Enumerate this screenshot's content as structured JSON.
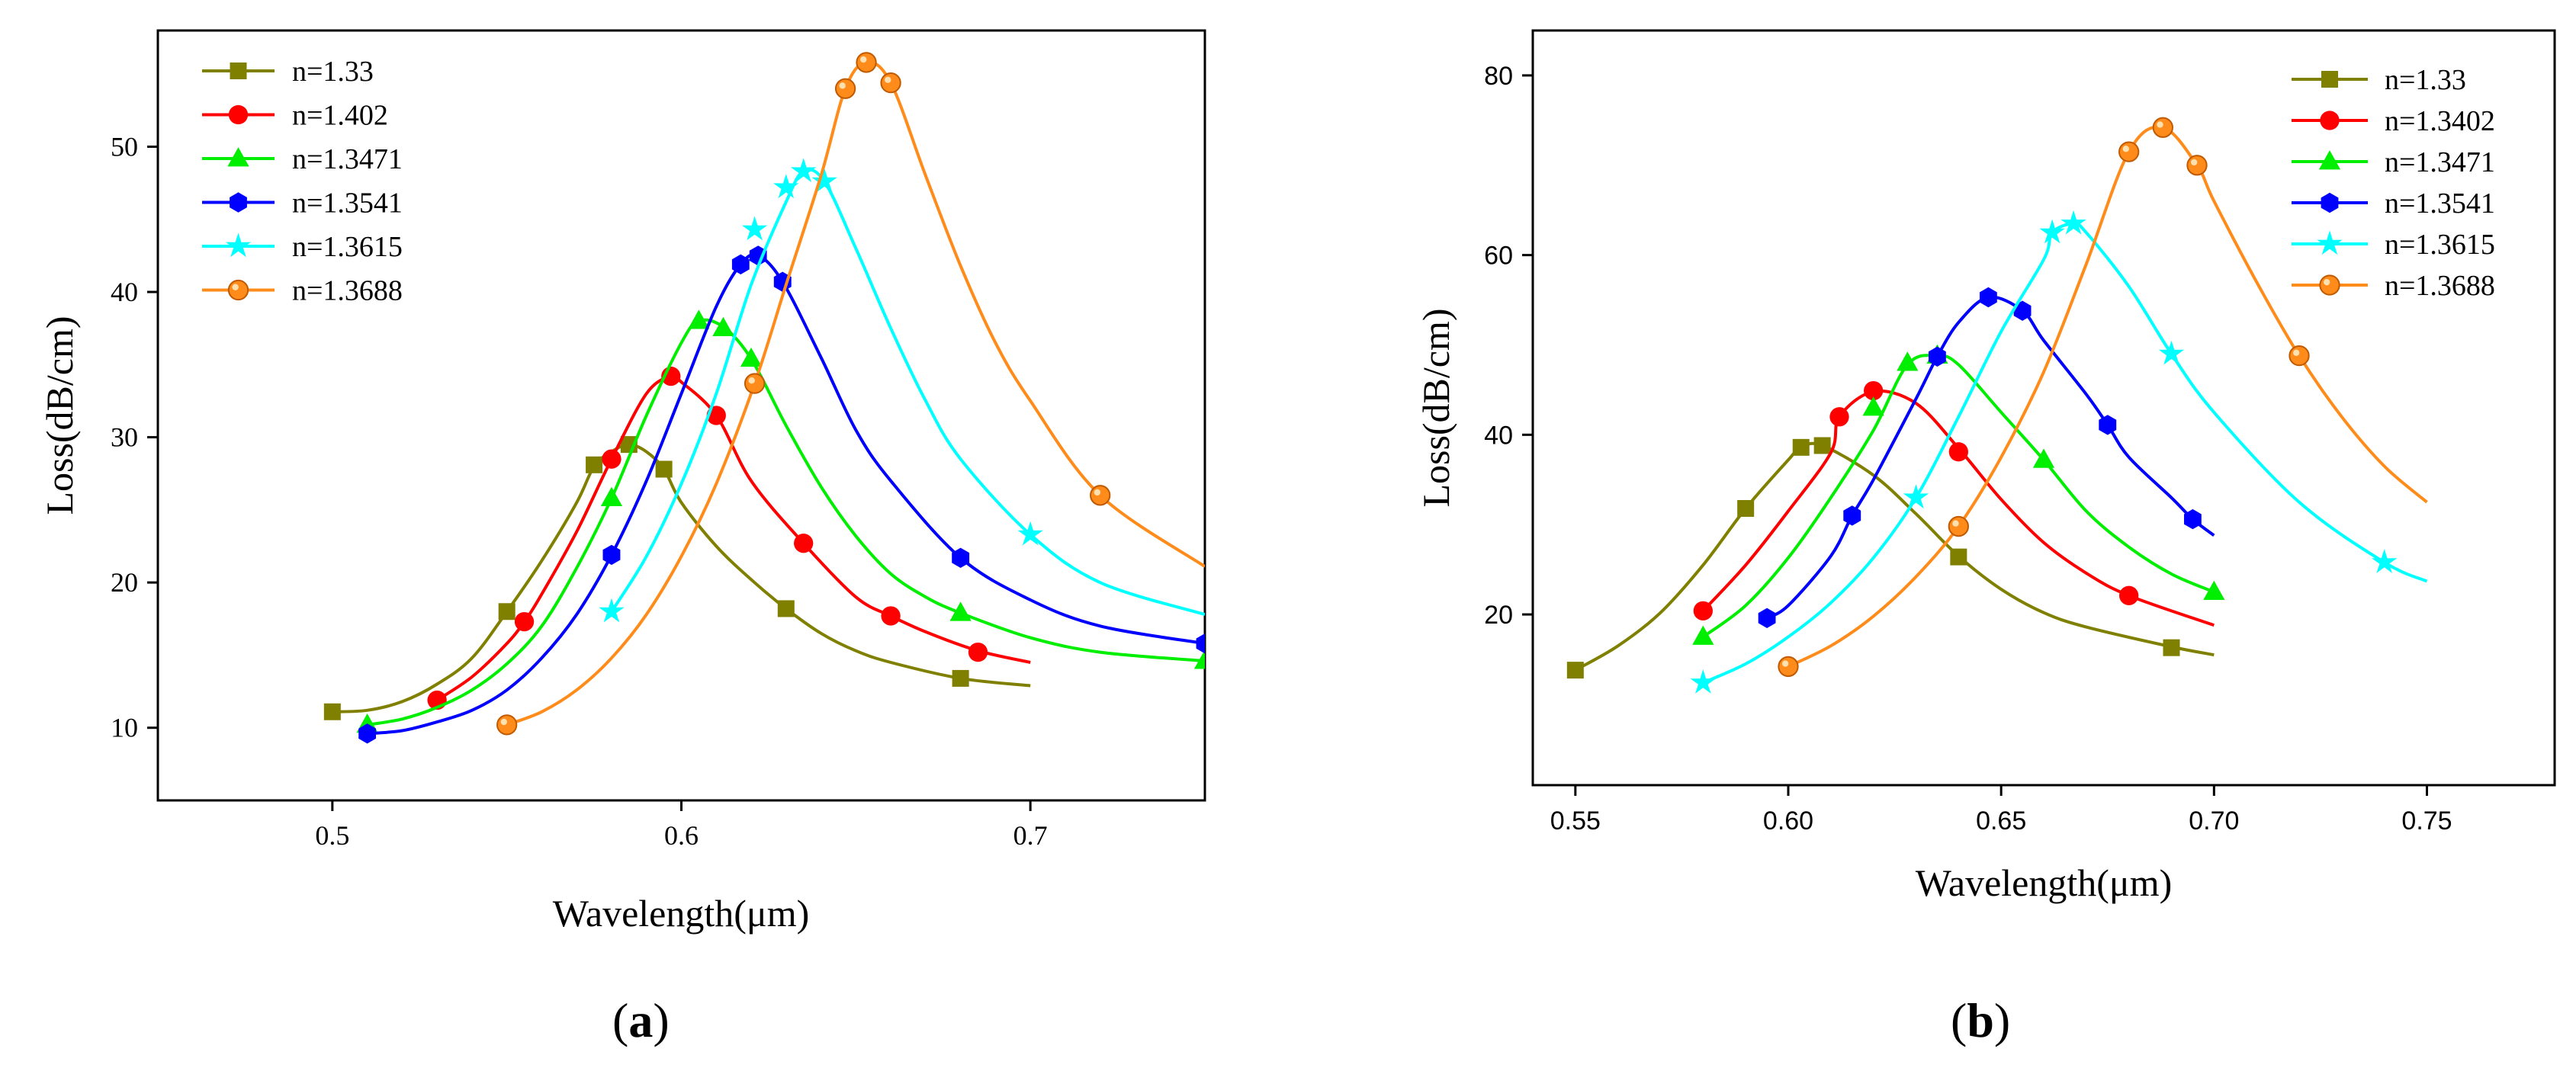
{
  "chart_data": [
    {
      "type": "line",
      "panel_label": "(a)",
      "panel_letter": "a",
      "xlabel": "Wavelength(μm)",
      "ylabel": "Loss(dB/cm)",
      "xlim": [
        0.45,
        0.75
      ],
      "ylim": [
        5,
        58
      ],
      "xticks": [
        0.5,
        0.6,
        0.7
      ],
      "xtick_labels": [
        "0.5",
        "0.6",
        "0.7"
      ],
      "yticks": [
        10,
        20,
        30,
        40,
        50
      ],
      "ytick_labels": [
        "10",
        "20",
        "30",
        "40",
        "50"
      ],
      "legend_position": "top-left",
      "series": [
        {
          "name": "n=1.33",
          "color": "#808000",
          "marker": "square",
          "x": [
            0.5,
            0.51,
            0.52,
            0.53,
            0.54,
            0.55,
            0.56,
            0.57,
            0.575,
            0.58,
            0.585,
            0.59,
            0.595,
            0.6,
            0.61,
            0.62,
            0.63,
            0.64,
            0.65,
            0.66,
            0.68,
            0.7
          ],
          "y": [
            11.1,
            11.2,
            11.8,
            13.0,
            14.8,
            18.0,
            21.5,
            25.5,
            28.0,
            29.0,
            29.5,
            29.0,
            27.8,
            25.5,
            22.5,
            20.2,
            18.2,
            16.5,
            15.3,
            14.5,
            13.4,
            12.9
          ],
          "marker_x": [
            0.5,
            0.55,
            0.575,
            0.585,
            0.595,
            0.63,
            0.68
          ],
          "marker_y": [
            11.1,
            18.0,
            28.1,
            29.5,
            27.8,
            18.2,
            13.4
          ]
        },
        {
          "name": "n=1.402",
          "color": "#ff0000",
          "marker": "circle",
          "x": [
            0.53,
            0.54,
            0.55,
            0.555,
            0.56,
            0.57,
            0.58,
            0.59,
            0.597,
            0.6,
            0.61,
            0.62,
            0.635,
            0.65,
            0.66,
            0.67,
            0.685,
            0.7
          ],
          "y": [
            11.9,
            13.5,
            15.8,
            17.3,
            19.2,
            23.5,
            28.5,
            33.0,
            34.2,
            33.8,
            31.5,
            27.0,
            22.7,
            19.0,
            17.7,
            16.6,
            15.3,
            14.5
          ],
          "marker_x": [
            0.53,
            0.555,
            0.58,
            0.597,
            0.61,
            0.635,
            0.66,
            0.685
          ],
          "marker_y": [
            11.9,
            17.3,
            28.5,
            34.2,
            31.5,
            22.7,
            17.7,
            15.2
          ]
        },
        {
          "name": "n=1.3471",
          "color": "#00ee00",
          "marker": "triangle",
          "x": [
            0.51,
            0.52,
            0.53,
            0.54,
            0.55,
            0.56,
            0.57,
            0.58,
            0.59,
            0.6,
            0.605,
            0.612,
            0.62,
            0.63,
            0.64,
            0.65,
            0.66,
            0.67,
            0.68,
            0.7,
            0.72,
            0.75
          ],
          "y": [
            10.2,
            10.6,
            11.4,
            12.6,
            14.4,
            17.0,
            21.0,
            25.8,
            31.5,
            36.5,
            38.0,
            37.6,
            35.4,
            30.8,
            26.6,
            23.2,
            20.6,
            19.0,
            17.9,
            16.2,
            15.2,
            14.6
          ],
          "marker_x": [
            0.51,
            0.58,
            0.605,
            0.612,
            0.62,
            0.68,
            0.75
          ],
          "marker_y": [
            10.2,
            25.8,
            38.0,
            37.5,
            35.4,
            17.9,
            14.6
          ]
        },
        {
          "name": "n=1.3541",
          "color": "#0000ff",
          "marker": "hexagon",
          "x": [
            0.51,
            0.52,
            0.53,
            0.54,
            0.55,
            0.56,
            0.57,
            0.58,
            0.59,
            0.6,
            0.61,
            0.617,
            0.622,
            0.629,
            0.64,
            0.65,
            0.66,
            0.68,
            0.7,
            0.72,
            0.75
          ],
          "y": [
            9.6,
            9.8,
            10.4,
            11.2,
            12.6,
            14.8,
            17.8,
            21.9,
            27.0,
            33.0,
            39.0,
            41.9,
            42.5,
            40.7,
            35.5,
            30.5,
            27.0,
            21.7,
            18.8,
            17.0,
            15.8
          ],
          "marker_x": [
            0.51,
            0.58,
            0.617,
            0.622,
            0.629,
            0.68,
            0.75
          ],
          "marker_y": [
            9.6,
            21.9,
            41.9,
            42.5,
            40.7,
            21.7,
            15.8
          ]
        },
        {
          "name": "n=1.3615",
          "color": "#00ffff",
          "marker": "star",
          "x": [
            0.58,
            0.59,
            0.6,
            0.61,
            0.62,
            0.63,
            0.635,
            0.641,
            0.65,
            0.66,
            0.67,
            0.68,
            0.7,
            0.72,
            0.75
          ],
          "y": [
            18.0,
            21.8,
            26.8,
            33.0,
            40.5,
            46.2,
            48.3,
            47.6,
            43.0,
            37.5,
            32.5,
            28.5,
            23.3,
            20.0,
            17.8
          ],
          "marker_x": [
            0.58,
            0.621,
            0.63,
            0.635,
            0.641,
            0.7
          ],
          "marker_y": [
            18.0,
            44.3,
            47.2,
            48.3,
            47.6,
            23.3
          ]
        },
        {
          "name": "n=1.3688",
          "color": "#ff8c1a",
          "marker": "sphere",
          "x": [
            0.55,
            0.56,
            0.57,
            0.58,
            0.59,
            0.6,
            0.61,
            0.621,
            0.63,
            0.64,
            0.647,
            0.653,
            0.66,
            0.67,
            0.68,
            0.69,
            0.7,
            0.72,
            0.75
          ],
          "y": [
            10.2,
            11.1,
            12.6,
            14.8,
            17.8,
            21.8,
            26.8,
            33.7,
            40.5,
            48.0,
            54.0,
            55.8,
            54.4,
            48.0,
            41.8,
            36.5,
            32.5,
            26.0,
            21.1
          ],
          "marker_x": [
            0.55,
            0.621,
            0.647,
            0.653,
            0.66,
            0.72
          ],
          "marker_y": [
            10.2,
            33.7,
            54.0,
            55.8,
            54.4,
            26.0
          ]
        }
      ]
    },
    {
      "type": "line",
      "panel_label": "(b)",
      "panel_letter": "b",
      "xlabel": "Wavelength(μm)",
      "ylabel": "Loss(dB/cm)",
      "xlim": [
        0.54,
        0.78
      ],
      "ylim": [
        1,
        85
      ],
      "xticks": [
        0.55,
        0.6,
        0.65,
        0.7,
        0.75
      ],
      "xtick_labels": [
        "0.55",
        "0.60",
        "0.65",
        "0.70",
        "0.75"
      ],
      "yticks": [
        20,
        40,
        60,
        80
      ],
      "ytick_labels": [
        "20",
        "40",
        "60",
        "80"
      ],
      "legend_position": "top-right",
      "series": [
        {
          "name": "n=1.33",
          "color": "#808000",
          "marker": "square",
          "x": [
            0.55,
            0.56,
            0.57,
            0.58,
            0.59,
            0.6,
            0.603,
            0.608,
            0.62,
            0.63,
            0.64,
            0.65,
            0.66,
            0.67,
            0.69,
            0.7
          ],
          "y": [
            13.8,
            16.5,
            20.2,
            25.5,
            31.8,
            37.2,
            38.6,
            38.8,
            35.5,
            31.2,
            26.5,
            22.8,
            20.2,
            18.6,
            16.4,
            15.5
          ],
          "marker_x": [
            0.55,
            0.59,
            0.603,
            0.608,
            0.64,
            0.69
          ],
          "marker_y": [
            13.8,
            31.8,
            38.6,
            38.8,
            26.4,
            16.3
          ]
        },
        {
          "name": "n=1.3402",
          "color": "#ff0000",
          "marker": "circle",
          "x": [
            0.58,
            0.59,
            0.6,
            0.61,
            0.612,
            0.62,
            0.63,
            0.64,
            0.65,
            0.66,
            0.67,
            0.68,
            0.7
          ],
          "y": [
            20.4,
            25.5,
            31.5,
            38.0,
            42.0,
            44.8,
            43.5,
            38.5,
            32.8,
            28.0,
            24.6,
            22.1,
            18.8
          ],
          "marker_x": [
            0.58,
            0.612,
            0.62,
            0.64,
            0.68
          ],
          "marker_y": [
            20.4,
            42.0,
            44.9,
            38.1,
            22.1
          ]
        },
        {
          "name": "n=1.3471",
          "color": "#00ee00",
          "marker": "triangle",
          "x": [
            0.58,
            0.59,
            0.6,
            0.61,
            0.62,
            0.628,
            0.635,
            0.64,
            0.65,
            0.66,
            0.67,
            0.68,
            0.69,
            0.7
          ],
          "y": [
            17.5,
            21.0,
            26.3,
            33.0,
            40.5,
            47.8,
            48.8,
            47.8,
            42.5,
            37.2,
            31.5,
            27.5,
            24.5,
            22.5
          ],
          "marker_x": [
            0.58,
            0.62,
            0.628,
            0.635,
            0.66,
            0.7
          ],
          "marker_y": [
            17.5,
            43.0,
            48.0,
            48.8,
            37.2,
            22.5
          ]
        },
        {
          "name": "n=1.3541",
          "color": "#0000ff",
          "marker": "hexagon",
          "x": [
            0.595,
            0.6,
            0.61,
            0.615,
            0.62,
            0.63,
            0.635,
            0.64,
            0.647,
            0.655,
            0.66,
            0.67,
            0.675,
            0.68,
            0.69,
            0.695,
            0.7
          ],
          "y": [
            19.6,
            21.0,
            26.5,
            31.0,
            35.0,
            44.0,
            48.7,
            52.5,
            55.3,
            53.8,
            50.5,
            44.5,
            41.1,
            37.5,
            33.0,
            30.6,
            28.8
          ],
          "marker_x": [
            0.595,
            0.615,
            0.635,
            0.647,
            0.655,
            0.675,
            0.695
          ],
          "marker_y": [
            19.6,
            31.0,
            48.7,
            55.3,
            53.8,
            41.1,
            30.6
          ]
        },
        {
          "name": "n=1.3615",
          "color": "#00ffff",
          "marker": "star",
          "x": [
            0.58,
            0.59,
            0.6,
            0.61,
            0.62,
            0.63,
            0.64,
            0.65,
            0.66,
            0.662,
            0.667,
            0.67,
            0.68,
            0.69,
            0.7,
            0.72,
            0.74,
            0.75
          ],
          "y": [
            12.4,
            14.5,
            17.5,
            21.3,
            26.3,
            33.0,
            42.0,
            51.5,
            59.5,
            62.5,
            63.5,
            62.5,
            56.5,
            49.0,
            42.5,
            32.5,
            25.8,
            23.7
          ],
          "marker_x": [
            0.58,
            0.63,
            0.662,
            0.667,
            0.69,
            0.74
          ],
          "marker_y": [
            12.4,
            33.0,
            62.5,
            63.5,
            49.0,
            25.8
          ]
        },
        {
          "name": "n=1.3688",
          "color": "#ff8c1a",
          "marker": "sphere",
          "x": [
            0.6,
            0.61,
            0.62,
            0.63,
            0.64,
            0.65,
            0.66,
            0.67,
            0.68,
            0.688,
            0.696,
            0.7,
            0.71,
            0.72,
            0.73,
            0.74,
            0.75
          ],
          "y": [
            14.2,
            16.5,
            19.8,
            24.2,
            29.8,
            37.5,
            47.0,
            59.0,
            71.5,
            74.2,
            70.0,
            66.0,
            57.0,
            48.8,
            42.0,
            36.5,
            32.5
          ],
          "marker_x": [
            0.6,
            0.64,
            0.68,
            0.688,
            0.696,
            0.72
          ],
          "marker_y": [
            14.2,
            29.8,
            71.5,
            74.2,
            70.0,
            48.8
          ]
        }
      ]
    }
  ]
}
